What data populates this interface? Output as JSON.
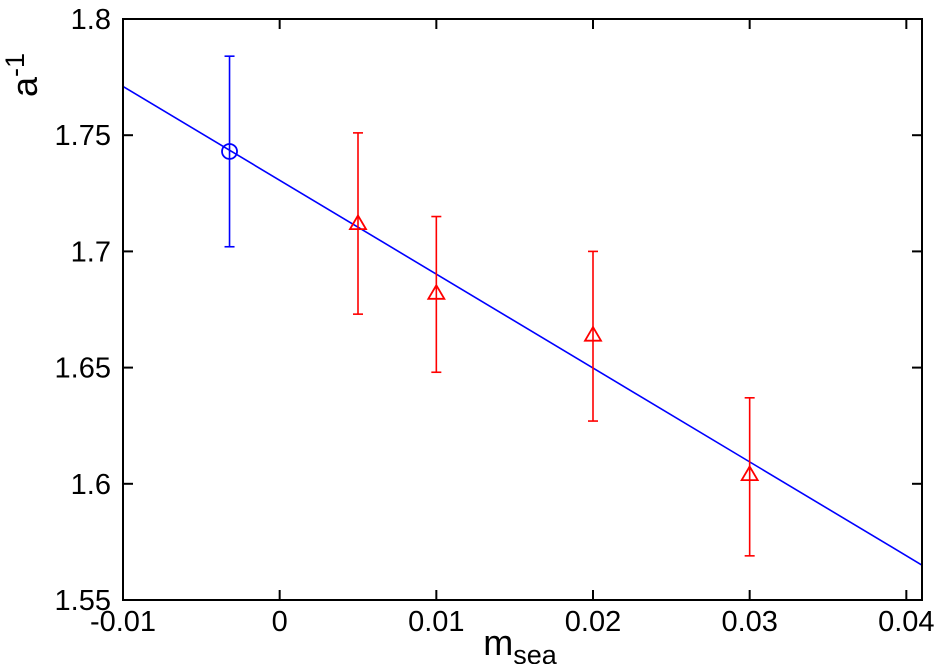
{
  "chart_data": {
    "type": "scatter",
    "title": "",
    "xlabel": {
      "base": "m",
      "sub": "sea"
    },
    "ylabel": {
      "base": "a",
      "sup": "-1"
    },
    "xlim": [
      -0.01,
      0.041
    ],
    "ylim": [
      1.55,
      1.8
    ],
    "xticks": [
      -0.01,
      0,
      0.01,
      0.02,
      0.03,
      0.04
    ],
    "xtick_labels": [
      "-0.01",
      "0",
      "0.01",
      "0.02",
      "0.03",
      "0.04"
    ],
    "yticks": [
      1.55,
      1.6,
      1.65,
      1.7,
      1.75,
      1.8
    ],
    "ytick_labels": [
      "1.55",
      "1.6",
      "1.65",
      "1.7",
      "1.75",
      "1.8"
    ],
    "grid": false,
    "legend": "none",
    "series": [
      {
        "marker": "triangle",
        "color": "#ff0000",
        "points": [
          {
            "x": 0.005,
            "y": 1.712,
            "err_low": 1.673,
            "err_high": 1.751
          },
          {
            "x": 0.01,
            "y": 1.682,
            "err_low": 1.648,
            "err_high": 1.715
          },
          {
            "x": 0.02,
            "y": 1.664,
            "err_low": 1.627,
            "err_high": 1.7
          },
          {
            "x": 0.03,
            "y": 1.604,
            "err_low": 1.569,
            "err_high": 1.637
          }
        ]
      },
      {
        "marker": "circle",
        "color": "#0000ff",
        "points": [
          {
            "x": -0.0032,
            "y": 1.743,
            "err_low": 1.702,
            "err_high": 1.784
          }
        ]
      }
    ],
    "fit_line": {
      "color": "#0000ff",
      "points": [
        {
          "x": -0.01,
          "y": 1.771
        },
        {
          "x": 0.041,
          "y": 1.565
        }
      ]
    }
  }
}
